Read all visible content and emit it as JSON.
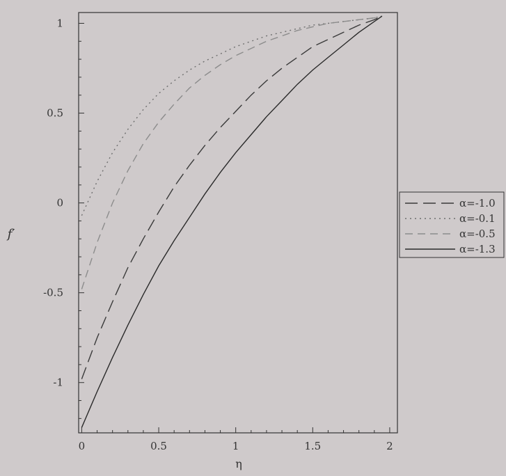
{
  "chart_data": {
    "type": "line",
    "xlabel": "η",
    "ylabel": "f′",
    "xlim": [
      -0.02,
      2.05
    ],
    "ylim": [
      -1.28,
      1.06
    ],
    "xticks": [
      0,
      0.5,
      1,
      1.5,
      2
    ],
    "xtick_labels": [
      "0",
      "0.5",
      "1",
      "1.5",
      "2"
    ],
    "yticks": [
      -1,
      -0.5,
      0,
      0.5,
      1
    ],
    "ytick_labels": [
      "-1",
      "-0.5",
      "0",
      "0.5",
      "1"
    ],
    "grid": false,
    "legend": "right",
    "series": [
      {
        "name": "α=-1.0",
        "style": "longdash",
        "color": "#3a3a3a",
        "x": [
          0,
          0.1,
          0.2,
          0.3,
          0.4,
          0.5,
          0.6,
          0.7,
          0.8,
          0.9,
          1.0,
          1.1,
          1.2,
          1.3,
          1.4,
          1.5,
          1.6,
          1.7,
          1.8,
          1.9,
          1.95
        ],
        "y": [
          -0.98,
          -0.75,
          -0.55,
          -0.36,
          -0.2,
          -0.05,
          0.09,
          0.21,
          0.32,
          0.42,
          0.51,
          0.6,
          0.68,
          0.75,
          0.81,
          0.87,
          0.91,
          0.95,
          0.99,
          1.02,
          1.04
        ]
      },
      {
        "name": "α=-0.1",
        "style": "dotted",
        "color": "#6e6e6e",
        "x": [
          0,
          0.1,
          0.2,
          0.3,
          0.4,
          0.5,
          0.6,
          0.7,
          0.8,
          0.9,
          1.0,
          1.1,
          1.2,
          1.3,
          1.4,
          1.5,
          1.6,
          1.7,
          1.8,
          1.9,
          1.95
        ],
        "y": [
          -0.07,
          0.12,
          0.28,
          0.41,
          0.52,
          0.61,
          0.68,
          0.74,
          0.79,
          0.83,
          0.87,
          0.9,
          0.93,
          0.95,
          0.97,
          0.99,
          1.0,
          1.01,
          1.02,
          1.03,
          1.04
        ]
      },
      {
        "name": "α=-0.5",
        "style": "dashed",
        "color": "#8c8c8c",
        "x": [
          0,
          0.1,
          0.2,
          0.3,
          0.4,
          0.5,
          0.6,
          0.7,
          0.8,
          0.9,
          1.0,
          1.1,
          1.2,
          1.3,
          1.4,
          1.5,
          1.6,
          1.7,
          1.8,
          1.9,
          1.95
        ],
        "y": [
          -0.48,
          -0.22,
          0.0,
          0.18,
          0.33,
          0.45,
          0.55,
          0.64,
          0.71,
          0.77,
          0.82,
          0.86,
          0.9,
          0.93,
          0.96,
          0.98,
          1.0,
          1.01,
          1.02,
          1.03,
          1.04
        ]
      },
      {
        "name": "α=-1.3",
        "style": "solid",
        "color": "#2a2a2a",
        "x": [
          0,
          0.1,
          0.2,
          0.3,
          0.4,
          0.5,
          0.6,
          0.7,
          0.8,
          0.9,
          1.0,
          1.1,
          1.2,
          1.3,
          1.4,
          1.5,
          1.6,
          1.7,
          1.8,
          1.9,
          1.95
        ],
        "y": [
          -1.25,
          -1.05,
          -0.86,
          -0.68,
          -0.51,
          -0.35,
          -0.21,
          -0.08,
          0.05,
          0.17,
          0.28,
          0.38,
          0.48,
          0.57,
          0.66,
          0.74,
          0.81,
          0.88,
          0.95,
          1.01,
          1.04
        ]
      }
    ]
  }
}
